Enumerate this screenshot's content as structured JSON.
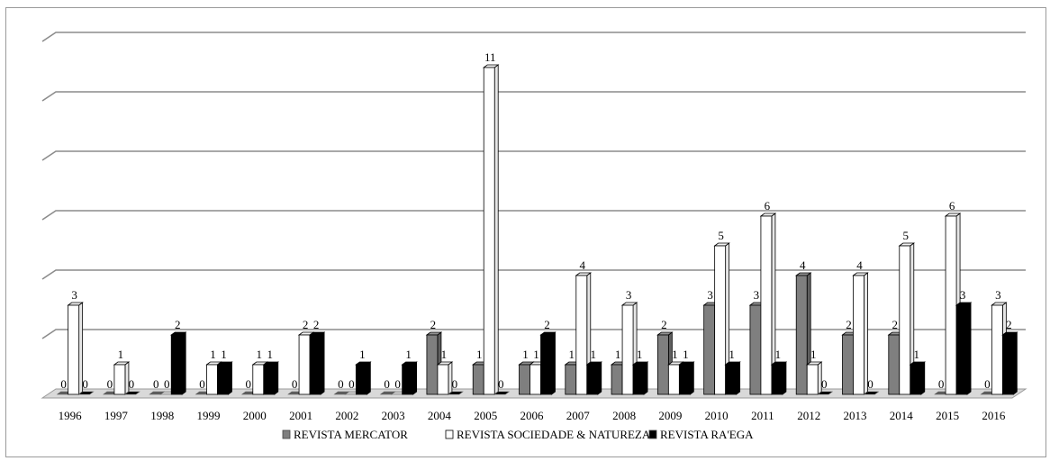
{
  "chart_data": {
    "type": "bar",
    "title": "",
    "xlabel": "",
    "ylabel": "",
    "ylim": [
      0,
      12
    ],
    "grid": true,
    "legend_position": "bottom",
    "categories": [
      "1996",
      "1997",
      "1998",
      "1999",
      "2000",
      "2001",
      "2002",
      "2003",
      "2004",
      "2005",
      "2006",
      "2007",
      "2008",
      "2009",
      "2010",
      "2011",
      "2012",
      "2013",
      "2014",
      "2015",
      "2016"
    ],
    "series": [
      {
        "name": "REVISTA MERCATOR",
        "color": "#7f7f7f",
        "values": [
          0,
          0,
          0,
          0,
          0,
          0,
          0,
          0,
          2,
          1,
          1,
          1,
          1,
          2,
          3,
          3,
          4,
          2,
          2,
          0,
          0
        ]
      },
      {
        "name": "REVISTA SOCIEDADE & NATUREZA",
        "color": "#ffffff",
        "values": [
          3,
          1,
          0,
          1,
          1,
          2,
          0,
          0,
          1,
          11,
          1,
          4,
          3,
          1,
          5,
          6,
          1,
          4,
          5,
          6,
          3
        ]
      },
      {
        "name": "REVISTA RA'EGA",
        "color": "#000000",
        "values": [
          0,
          0,
          2,
          1,
          1,
          2,
          1,
          1,
          0,
          0,
          2,
          1,
          1,
          1,
          1,
          1,
          0,
          0,
          1,
          3,
          2
        ]
      }
    ]
  }
}
